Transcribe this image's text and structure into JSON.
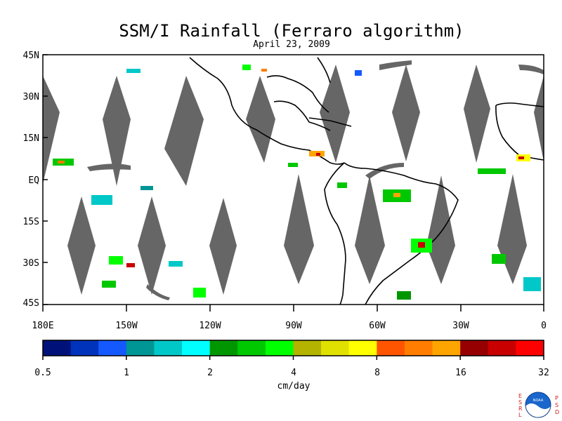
{
  "title": "SSM/I Rainfall (Ferraro algorithm)",
  "subtitle": "April 23, 2009",
  "map": {
    "lat_labels": [
      "45N",
      "30N",
      "15N",
      "EQ",
      "15S",
      "30S",
      "45S"
    ],
    "lon_labels": [
      "180E",
      "150W",
      "120W",
      "90W",
      "60W",
      "30W",
      "0"
    ],
    "lon_range": [
      -180,
      0
    ],
    "lat_range": [
      -45,
      45
    ],
    "swath_gap_color": "#666666",
    "coastline_color": "#000000"
  },
  "colorbar": {
    "unit_label": "cm/day",
    "tick_labels": [
      "0.5",
      "1",
      "2",
      "4",
      "8",
      "16",
      "32"
    ],
    "colors": [
      "#00127a",
      "#0033bb",
      "#1459ff",
      "#009696",
      "#00c8c8",
      "#00ffff",
      "#009600",
      "#00c800",
      "#00ff00",
      "#b4b400",
      "#e1e100",
      "#ffff00",
      "#ff5500",
      "#ff7d00",
      "#ffa500",
      "#960000",
      "#c80000",
      "#ff0000"
    ]
  },
  "logo": {
    "left_letters": [
      "E",
      "S",
      "R",
      "L"
    ],
    "right_letters": [
      "P",
      "S",
      "D"
    ],
    "center_text": "NOAA"
  }
}
